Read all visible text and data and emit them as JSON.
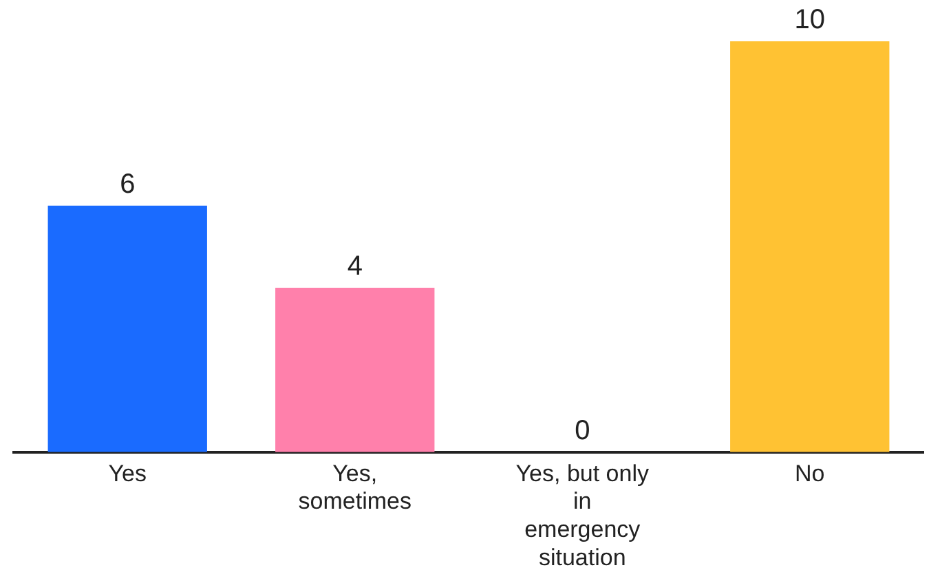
{
  "chart_data": {
    "type": "bar",
    "categories": [
      "Yes",
      "Yes, sometimes",
      "Yes, but only in emergency situation",
      "No"
    ],
    "values": [
      6,
      4,
      0,
      10
    ],
    "colors": [
      "#1a6bff",
      "#ff80ab",
      "#ffc233",
      "#ffc233"
    ],
    "data_labels": true,
    "grid": false,
    "legend": false
  }
}
